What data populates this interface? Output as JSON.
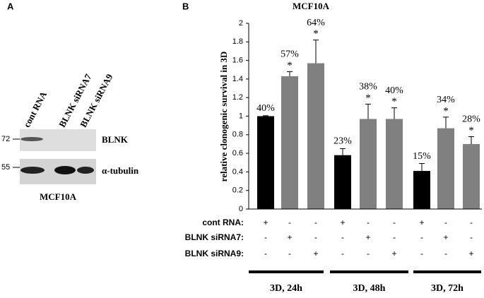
{
  "panel_labels": [
    "A",
    "B"
  ],
  "blot": {
    "lanes": [
      "cont RNA",
      "BLNK siRNA7",
      "BLNK siRNA9"
    ],
    "markers": [
      "72",
      "55"
    ],
    "bands": [
      "BLNK",
      "α-tubulin"
    ],
    "cell_line": "MCF10A"
  },
  "chart_data": {
    "type": "bar",
    "title": "MCF10A",
    "y_label": "relative clonogenic survival in 3D",
    "values": [
      1.0,
      1.43,
      1.57,
      0.58,
      0.97,
      0.97,
      0.41,
      0.87,
      0.7
    ],
    "errors": [
      0.005,
      0.05,
      0.25,
      0.07,
      0.16,
      0.12,
      0.08,
      0.12,
      0.08
    ],
    "colors": [
      "#000000",
      "#808080",
      "#808080",
      "#000000",
      "#808080",
      "#808080",
      "#000000",
      "#808080",
      "#808080"
    ],
    "annotations": [
      "40%",
      "57%",
      "64%",
      "23%",
      "38%",
      "40%",
      "15%",
      "34%",
      "28%"
    ],
    "stars": [
      null,
      "*",
      "*",
      null,
      "*",
      "*",
      null,
      "*",
      "*"
    ],
    "ylim": [
      0,
      2
    ],
    "yticks": [
      0,
      0.2,
      0.4,
      0.6,
      0.8,
      1,
      1.2,
      1.4,
      1.6,
      1.8,
      2
    ],
    "treatments": [
      {
        "label": "cont RNA:",
        "marks": [
          "+",
          "-",
          "-",
          "+",
          "-",
          "-",
          "+",
          "-",
          "-"
        ]
      },
      {
        "label": "BLNK siRNA7:",
        "marks": [
          "-",
          "+",
          "-",
          "-",
          "+",
          "-",
          "-",
          "+",
          "-"
        ]
      },
      {
        "label": "BLNK siRNA9:",
        "marks": [
          "-",
          "-",
          "+",
          "-",
          "-",
          "+",
          "-",
          "-",
          "+"
        ]
      }
    ],
    "groups": [
      "3D, 24h",
      "3D, 48h",
      "3D, 72h"
    ]
  }
}
